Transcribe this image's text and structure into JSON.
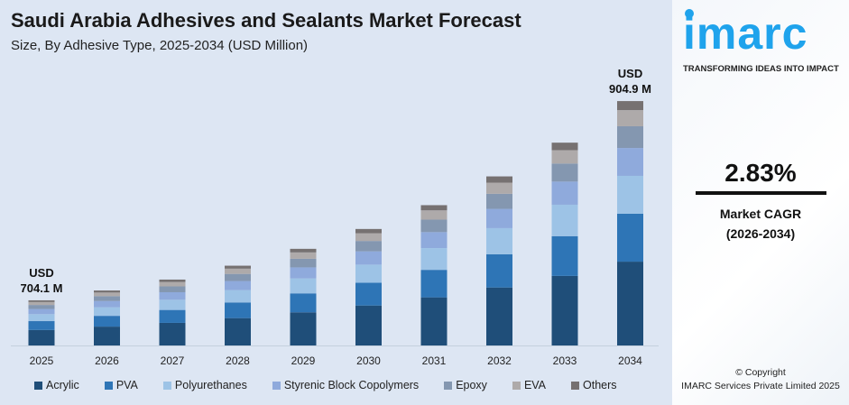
{
  "title": "Saudi Arabia Adhesives and Sealants Market Forecast",
  "subtitle": "Size, By Adhesive Type, 2025-2034 (USD Million)",
  "chart_data": {
    "type": "bar",
    "stacked": true,
    "categories": [
      "2025",
      "2026",
      "2027",
      "2028",
      "2029",
      "2030",
      "2031",
      "2032",
      "2033",
      "2034"
    ],
    "totals": [
      704.1,
      714,
      725,
      739,
      756,
      776,
      800,
      829,
      863,
      904.9
    ],
    "series": [
      {
        "name": "Acrylic",
        "color": "#1f4e79",
        "share": 0.343
      },
      {
        "name": "PVA",
        "color": "#2e75b6",
        "share": 0.196
      },
      {
        "name": "Polyurethanes",
        "color": "#9dc3e6",
        "share": 0.155
      },
      {
        "name": "Styrenic Block Copolymers",
        "color": "#8faadc",
        "share": 0.114
      },
      {
        "name": "Epoxy",
        "color": "#8497b0",
        "share": 0.089
      },
      {
        "name": "EVA",
        "color": "#aeaaaa",
        "share": 0.066
      },
      {
        "name": "Others",
        "color": "#767171",
        "share": 0.037
      }
    ],
    "annotations": [
      {
        "year": "2025",
        "line1": "USD",
        "line2": "704.1 M"
      },
      {
        "year": "2034",
        "line1": "USD",
        "line2": "904.9 M"
      }
    ],
    "grid": false,
    "legend": "bottom"
  },
  "brand": {
    "logo": "imarc",
    "tagline": "TRANSFORMING IDEAS INTO IMPACT",
    "color": "#1fa3ec"
  },
  "cagr": {
    "value": "2.83%",
    "label": "Market CAGR",
    "period": "(2026-2034)"
  },
  "copyright": {
    "line1": "© Copyright",
    "line2": "IMARC Services Private Limited 2025"
  }
}
